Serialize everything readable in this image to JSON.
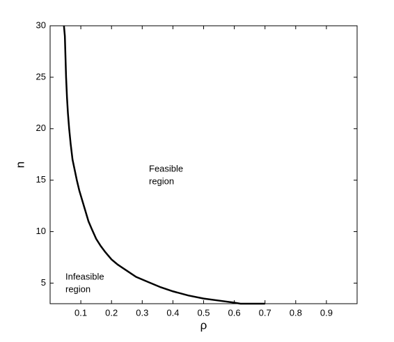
{
  "chart_data": {
    "type": "line",
    "xlabel": "ρ",
    "ylabel": "n",
    "xlim": [
      0,
      1
    ],
    "ylim": [
      3,
      30
    ],
    "xticks": [
      0.1,
      0.2,
      0.3,
      0.4,
      0.5,
      0.6,
      0.7,
      0.8,
      0.9
    ],
    "yticks": [
      5,
      10,
      15,
      20,
      25,
      30
    ],
    "grid": false,
    "series": [
      {
        "color": "#000000",
        "x": [
          0.045,
          0.048,
          0.05,
          0.052,
          0.055,
          0.058,
          0.062,
          0.067,
          0.073,
          0.08,
          0.087,
          0.095,
          0.105,
          0.115,
          0.125,
          0.135,
          0.15,
          0.165,
          0.18,
          0.2,
          0.22,
          0.25,
          0.28,
          0.32,
          0.36,
          0.4,
          0.45,
          0.5,
          0.55,
          0.6,
          0.62,
          0.7
        ],
        "values": [
          30,
          29,
          27,
          25,
          23,
          21.5,
          20,
          18.5,
          17,
          16,
          15,
          14,
          13,
          12,
          11,
          10.3,
          9.3,
          8.6,
          8,
          7.3,
          6.8,
          6.2,
          5.6,
          5.1,
          4.6,
          4.2,
          3.8,
          3.5,
          3.3,
          3.1,
          3,
          3
        ]
      }
    ],
    "annotations": [
      {
        "lines": [
          "Feasible",
          "region"
        ]
      },
      {
        "lines": [
          "Infeasible",
          "region"
        ]
      }
    ]
  }
}
